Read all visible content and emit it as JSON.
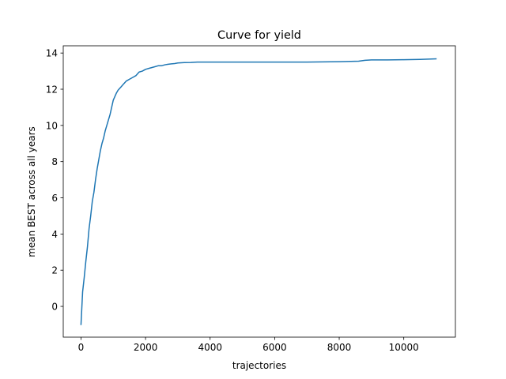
{
  "chart_data": {
    "type": "line",
    "title": "Curve for yield",
    "xlabel": "trajectories",
    "ylabel": "mean BEST across all years",
    "xlim": [
      -550,
      11600
    ],
    "ylim": [
      -1.7,
      14.4
    ],
    "xticks": [
      0,
      2000,
      4000,
      6000,
      8000,
      10000
    ],
    "yticks": [
      0,
      2,
      4,
      6,
      8,
      10,
      12,
      14
    ],
    "grid": false,
    "legend": "none",
    "line_color": "#1f77b4",
    "series": [
      {
        "x": [
          0,
          50,
          100,
          150,
          200,
          250,
          300,
          350,
          400,
          450,
          500,
          550,
          600,
          650,
          700,
          750,
          800,
          850,
          900,
          950,
          1000,
          1050,
          1100,
          1150,
          1200,
          1250,
          1300,
          1350,
          1400,
          1450,
          1500,
          1600,
          1700,
          1800,
          1900,
          2000,
          2100,
          2200,
          2300,
          2400,
          2500,
          2600,
          2700,
          2800,
          2900,
          3000,
          3200,
          3400,
          3600,
          3800,
          4000,
          5000,
          6000,
          7000,
          8000,
          8600,
          8800,
          9000,
          9500,
          10000,
          10500,
          11000
        ],
        "y": [
          -1.0,
          0.8,
          1.6,
          2.5,
          3.3,
          4.3,
          5.0,
          5.8,
          6.3,
          7.0,
          7.6,
          8.1,
          8.6,
          9.0,
          9.3,
          9.7,
          10.0,
          10.3,
          10.6,
          11.0,
          11.4,
          11.6,
          11.8,
          11.95,
          12.05,
          12.15,
          12.25,
          12.35,
          12.45,
          12.5,
          12.55,
          12.65,
          12.75,
          12.95,
          13.0,
          13.1,
          13.15,
          13.2,
          13.25,
          13.3,
          13.3,
          13.35,
          13.38,
          13.4,
          13.42,
          13.45,
          13.47,
          13.48,
          13.5,
          13.5,
          13.5,
          13.5,
          13.5,
          13.5,
          13.52,
          13.55,
          13.6,
          13.62,
          13.62,
          13.63,
          13.65,
          13.68
        ]
      }
    ]
  }
}
